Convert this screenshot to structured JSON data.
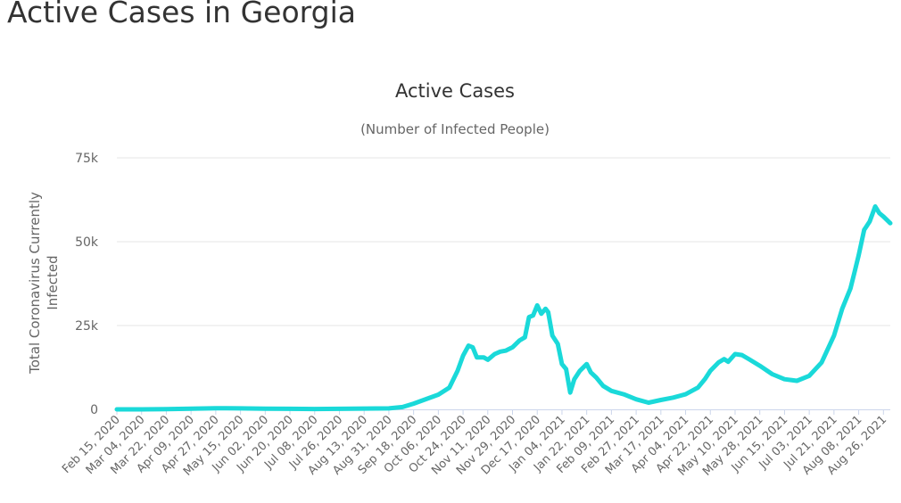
{
  "page": {
    "title": "Active Cases in Georgia"
  },
  "colors": {
    "series": "#1ad9d9"
  },
  "chart_data": {
    "type": "line",
    "title": "Active Cases",
    "subtitle": "(Number of Infected People)",
    "xlabel": "",
    "ylabel_lines": [
      "Total Coronavirus Currently",
      "Infected"
    ],
    "ylim": [
      0,
      75000
    ],
    "yticks": [
      0,
      25000,
      50000,
      75000
    ],
    "ytick_labels": [
      "0",
      "25k",
      "50k",
      "75k"
    ],
    "grid": true,
    "legend": "none",
    "x_start": "Feb 15, 2020",
    "x_end": "Aug 31, 2021",
    "xtick_labels": [
      "Feb 15, 2020",
      "Mar 04, 2020",
      "Mar 22, 2020",
      "Apr 09, 2020",
      "Apr 27, 2020",
      "May 15, 2020",
      "Jun 02, 2020",
      "Jun 20, 2020",
      "Jul 08, 2020",
      "Jul 26, 2020",
      "Aug 13, 2020",
      "Aug 31, 2020",
      "Sep 18, 2020",
      "Oct 06, 2020",
      "Oct 24, 2020",
      "Nov 11, 2020",
      "Nov 29, 2020",
      "Dec 17, 2020",
      "Jan 04, 2021",
      "Jan 22, 2021",
      "Feb 09, 2021",
      "Feb 27, 2021",
      "Mar 17, 2021",
      "Apr 04, 2021",
      "Apr 22, 2021",
      "May 10, 2021",
      "May 28, 2021",
      "Jun 15, 2021",
      "Jul 03, 2021",
      "Jul 21, 2021",
      "Aug 08, 2021",
      "Aug 26, 2021"
    ],
    "series": [
      {
        "name": "",
        "points": [
          [
            "Feb 15, 2020",
            0
          ],
          [
            "Mar 04, 2020",
            0
          ],
          [
            "Mar 22, 2020",
            50
          ],
          [
            "Apr 09, 2020",
            200
          ],
          [
            "Apr 27, 2020",
            350
          ],
          [
            "May 15, 2020",
            300
          ],
          [
            "Jun 02, 2020",
            200
          ],
          [
            "Jun 20, 2020",
            150
          ],
          [
            "Jul 08, 2020",
            100
          ],
          [
            "Jul 26, 2020",
            150
          ],
          [
            "Aug 13, 2020",
            250
          ],
          [
            "Aug 31, 2020",
            300
          ],
          [
            "Sep 10, 2020",
            700
          ],
          [
            "Sep 18, 2020",
            1700
          ],
          [
            "Sep 28, 2020",
            3200
          ],
          [
            "Oct 06, 2020",
            4400
          ],
          [
            "Oct 14, 2020",
            6500
          ],
          [
            "Oct 20, 2020",
            11500
          ],
          [
            "Oct 24, 2020",
            16000
          ],
          [
            "Oct 28, 2020",
            19000
          ],
          [
            "Oct 31, 2020",
            18500
          ],
          [
            "Nov 03, 2020",
            15500
          ],
          [
            "Nov 08, 2020",
            15500
          ],
          [
            "Nov 11, 2020",
            14800
          ],
          [
            "Nov 16, 2020",
            16500
          ],
          [
            "Nov 20, 2020",
            17200
          ],
          [
            "Nov 24, 2020",
            17500
          ],
          [
            "Nov 29, 2020",
            18500
          ],
          [
            "Dec 04, 2020",
            20500
          ],
          [
            "Dec 08, 2020",
            21500
          ],
          [
            "Dec 11, 2020",
            27500
          ],
          [
            "Dec 14, 2020",
            28000
          ],
          [
            "Dec 17, 2020",
            31000
          ],
          [
            "Dec 20, 2020",
            28500
          ],
          [
            "Dec 23, 2020",
            30000
          ],
          [
            "Dec 25, 2020",
            29000
          ],
          [
            "Dec 28, 2020",
            22000
          ],
          [
            "Jan 01, 2021",
            19500
          ],
          [
            "Jan 04, 2021",
            13500
          ],
          [
            "Jan 07, 2021",
            12000
          ],
          [
            "Jan 10, 2021",
            5000
          ],
          [
            "Jan 13, 2021",
            9000
          ],
          [
            "Jan 17, 2021",
            11500
          ],
          [
            "Jan 22, 2021",
            13500
          ],
          [
            "Jan 25, 2021",
            11000
          ],
          [
            "Jan 29, 2021",
            9500
          ],
          [
            "Feb 03, 2021",
            7000
          ],
          [
            "Feb 09, 2021",
            5500
          ],
          [
            "Feb 18, 2021",
            4500
          ],
          [
            "Feb 27, 2021",
            3000
          ],
          [
            "Mar 08, 2021",
            2000
          ],
          [
            "Mar 17, 2021",
            2800
          ],
          [
            "Mar 26, 2021",
            3500
          ],
          [
            "Apr 04, 2021",
            4500
          ],
          [
            "Apr 13, 2021",
            6500
          ],
          [
            "Apr 18, 2021",
            9000
          ],
          [
            "Apr 22, 2021",
            11500
          ],
          [
            "Apr 28, 2021",
            14000
          ],
          [
            "May 02, 2021",
            15000
          ],
          [
            "May 05, 2021",
            14200
          ],
          [
            "May 10, 2021",
            16500
          ],
          [
            "May 15, 2021",
            16200
          ],
          [
            "May 20, 2021",
            15000
          ],
          [
            "May 28, 2021",
            13000
          ],
          [
            "Jun 06, 2021",
            10500
          ],
          [
            "Jun 15, 2021",
            9000
          ],
          [
            "Jun 24, 2021",
            8500
          ],
          [
            "Jul 03, 2021",
            10000
          ],
          [
            "Jul 12, 2021",
            14000
          ],
          [
            "Jul 21, 2021",
            22000
          ],
          [
            "Jul 27, 2021",
            30000
          ],
          [
            "Aug 02, 2021",
            36000
          ],
          [
            "Aug 05, 2021",
            41000
          ],
          [
            "Aug 08, 2021",
            46000
          ],
          [
            "Aug 12, 2021",
            53500
          ],
          [
            "Aug 16, 2021",
            56000
          ],
          [
            "Aug 20, 2021",
            60500
          ],
          [
            "Aug 23, 2021",
            58500
          ],
          [
            "Aug 26, 2021",
            57500
          ],
          [
            "Aug 31, 2021",
            55500
          ]
        ]
      }
    ]
  }
}
